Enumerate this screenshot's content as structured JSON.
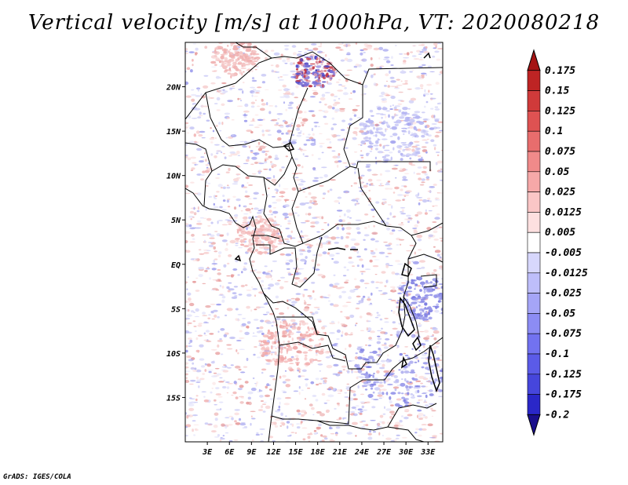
{
  "title": "Vertical velocity [m/s] at 1000hPa, VT: 2020080218",
  "credit": "GrADS: IGES/COLA",
  "map": {
    "lon_range": [
      0,
      35
    ],
    "lat_range": [
      -20,
      25
    ],
    "lat_ticks": [
      {
        "lat": 20,
        "label": "20N"
      },
      {
        "lat": 15,
        "label": "15N"
      },
      {
        "lat": 10,
        "label": "10N"
      },
      {
        "lat": 5,
        "label": "5N"
      },
      {
        "lat": 0,
        "label": "EQ"
      },
      {
        "lat": -5,
        "label": "5S"
      },
      {
        "lat": -10,
        "label": "10S"
      },
      {
        "lat": -15,
        "label": "15S"
      }
    ],
    "lon_ticks": [
      {
        "lon": 3,
        "label": "3E"
      },
      {
        "lon": 6,
        "label": "6E"
      },
      {
        "lon": 9,
        "label": "9E"
      },
      {
        "lon": 12,
        "label": "12E"
      },
      {
        "lon": 15,
        "label": "15E"
      },
      {
        "lon": 18,
        "label": "18E"
      },
      {
        "lon": 21,
        "label": "21E"
      },
      {
        "lon": 24,
        "label": "24E"
      },
      {
        "lon": 27,
        "label": "27E"
      },
      {
        "lon": 30,
        "label": "30E"
      },
      {
        "lon": 33,
        "label": "33E"
      }
    ]
  },
  "colorbar": {
    "colors": [
      "#1a0f8c",
      "#2a27c8",
      "#4646dc",
      "#5b5be8",
      "#7272f0",
      "#8c8cf4",
      "#a5a5f7",
      "#bebefa",
      "#d7d7fc",
      "#ffffff",
      "#fde0e0",
      "#fac6c6",
      "#f6a8a8",
      "#f08a8a",
      "#e86d6d",
      "#de5252",
      "#d03a3a",
      "#be2424",
      "#a51414"
    ],
    "labels": [
      "-0.2",
      "-0.175",
      "-0.125",
      "-0.1",
      "-0.075",
      "-0.05",
      "-0.025",
      "-0.0125",
      "-0.005",
      "0.005",
      "0.0125",
      "0.025",
      "0.05",
      "0.075",
      "0.1",
      "0.125",
      "0.15",
      "0.175"
    ]
  }
}
